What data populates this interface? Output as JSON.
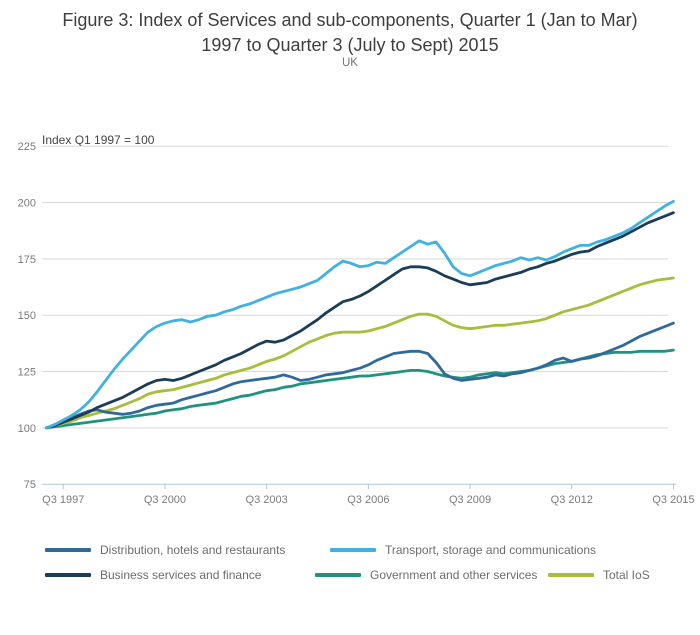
{
  "header": {
    "title_line1": "Figure 3: Index of Services and sub-components, Quarter 1 (Jan to Mar)",
    "title_line2": "1997 to Quarter 3 (July to Sept) 2015",
    "subtitle": "UK"
  },
  "chart_data": {
    "type": "line",
    "axis_note": "Index Q1 1997 = 100",
    "ylim": [
      75,
      225
    ],
    "y_ticks": [
      225,
      200,
      175,
      150,
      125,
      100,
      75
    ],
    "x_tick_labels": [
      "Q3 1997",
      "Q3 2000",
      "Q3 2003",
      "Q3 2006",
      "Q3 2009",
      "Q3 2012",
      "Q3 2015"
    ],
    "x_tick_quarters": [
      2,
      14,
      26,
      38,
      50,
      62,
      74
    ],
    "x_range_quarters": [
      0,
      74
    ],
    "x_start": "Q1 1997",
    "x_end": "Q3 2015",
    "grid": "horizontal",
    "legend_position": "bottom",
    "colors": {
      "distribution": "#306a9a",
      "transport": "#41b1e1",
      "business": "#1b3d57",
      "government": "#1f9380",
      "total_ios": "#a8bd3a"
    },
    "series": [
      {
        "name": "Distribution, hotels and restaurants",
        "color": "#306a9a",
        "values": [
          100,
          101.5,
          103,
          104.5,
          106,
          107.5,
          108,
          107,
          106.5,
          106,
          106.5,
          107.5,
          109,
          110,
          110.5,
          111,
          112.5,
          113.5,
          114.5,
          115.5,
          116.5,
          118,
          119.5,
          120.5,
          121,
          121.5,
          122,
          122.5,
          123.5,
          122.5,
          121,
          121.5,
          122.5,
          123.5,
          124,
          124.5,
          125.5,
          126.5,
          128,
          130,
          131.5,
          133,
          133.5,
          134,
          134,
          133,
          129,
          124,
          122,
          121,
          121.5,
          122,
          122.5,
          123.5,
          123,
          124,
          124.5,
          125.5,
          126.5,
          128,
          130,
          131,
          129.5,
          130.5,
          131,
          132,
          133.5,
          135,
          136.5,
          138.5,
          140.5,
          142,
          143.5,
          145,
          146.5
        ]
      },
      {
        "name": "Transport, storage and communications",
        "color": "#41b1e1",
        "values": [
          100,
          101.5,
          103.5,
          105.5,
          108,
          111.5,
          116,
          121,
          126,
          130.5,
          134.5,
          138.5,
          142.5,
          145,
          146.5,
          147.5,
          148,
          147,
          148,
          149.5,
          150,
          151.5,
          152.5,
          154,
          155,
          156.5,
          158,
          159.5,
          160.5,
          161.5,
          162.5,
          164,
          165.5,
          168.5,
          171.5,
          174,
          173,
          171.5,
          172,
          173.5,
          173,
          175.5,
          178,
          180.5,
          183,
          181.5,
          182.5,
          177.5,
          171.5,
          168.5,
          167.5,
          169,
          170.5,
          172,
          173,
          174,
          175.5,
          174.5,
          175.5,
          174.5,
          176,
          178,
          179.5,
          181,
          181,
          182.5,
          183.5,
          185,
          186.5,
          188.5,
          191,
          193.5,
          196,
          198.5,
          200.5
        ]
      },
      {
        "name": "Business services and finance",
        "color": "#1b3d57",
        "values": [
          100,
          101,
          102.5,
          104,
          105.5,
          107,
          109,
          110.5,
          112,
          113.5,
          115.5,
          117.5,
          119.5,
          121,
          121.5,
          121,
          122,
          123.5,
          125,
          126.5,
          128,
          130,
          131.5,
          133,
          135,
          137,
          138.5,
          138,
          139,
          141,
          143,
          145.5,
          148,
          151,
          153.5,
          156,
          157,
          158.5,
          160.5,
          163,
          165.5,
          168,
          170.5,
          171.5,
          171.5,
          171,
          169.5,
          167.5,
          166,
          164.5,
          163.5,
          164,
          164.5,
          166,
          167,
          168,
          169,
          170.5,
          171.5,
          173,
          174,
          175.5,
          177,
          178,
          178.5,
          180.5,
          182,
          183.5,
          185,
          187,
          189,
          191,
          192.5,
          194,
          195.5
        ]
      },
      {
        "name": "Government and other services",
        "color": "#1f9380",
        "values": [
          100,
          100.5,
          101,
          101.5,
          102,
          102.5,
          103,
          103.5,
          104,
          104.5,
          105,
          105.5,
          106,
          106.5,
          107.5,
          108,
          108.5,
          109.5,
          110,
          110.5,
          111,
          112,
          113,
          114,
          114.5,
          115.5,
          116.5,
          117,
          118,
          118.5,
          119.5,
          120,
          120.5,
          121,
          121.5,
          122,
          122.5,
          123,
          123,
          123.5,
          124,
          124.5,
          125,
          125.5,
          125.5,
          125,
          124,
          123,
          122.5,
          122,
          122.5,
          123.5,
          124,
          124.5,
          124,
          124.5,
          125,
          125.5,
          126.5,
          127.5,
          128.5,
          129,
          129.5,
          130.5,
          131.5,
          132.5,
          133,
          133.5,
          133.5,
          133.5,
          134,
          134,
          134,
          134,
          134.5
        ]
      },
      {
        "name": "Total IoS",
        "color": "#a8bd3a",
        "values": [
          100,
          101,
          102,
          103,
          104.5,
          105.5,
          106.5,
          107.5,
          108.5,
          110,
          111.5,
          113,
          115,
          116,
          116.5,
          117,
          118,
          119,
          120,
          121,
          122,
          123.5,
          124.5,
          125.5,
          126.5,
          128,
          129.5,
          130.5,
          132,
          134,
          136,
          138,
          139.5,
          141,
          142,
          142.5,
          142.5,
          142.5,
          143,
          144,
          145,
          146.5,
          148,
          149.5,
          150.5,
          150.5,
          149.5,
          147.5,
          145.5,
          144.5,
          144,
          144.5,
          145,
          145.5,
          145.5,
          146,
          146.5,
          147,
          147.5,
          148.5,
          150,
          151.5,
          152.5,
          153.5,
          154.5,
          156,
          157.5,
          159,
          160.5,
          162,
          163.5,
          164.5,
          165.5,
          166,
          166.5
        ]
      }
    ]
  }
}
